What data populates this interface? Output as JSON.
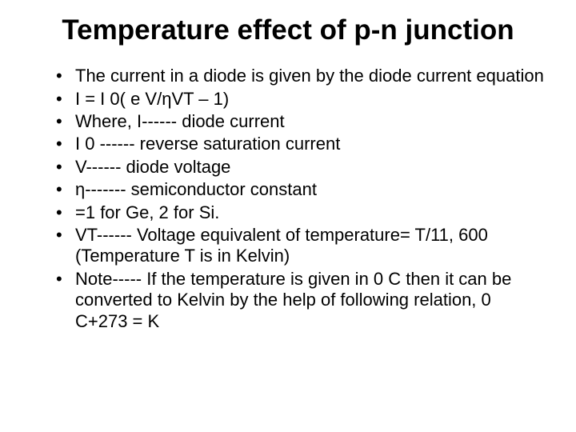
{
  "title": "Temperature effect of p-n junction",
  "bullets": [
    "The current in a diode is given by the diode current equation",
    "I = I 0( e V/ηVT – 1)",
    "Where, I------ diode current",
    "               I 0 ------ reverse saturation current",
    "               V------ diode voltage",
    "               η------- semiconductor constant",
    "                          =1  for Ge, 2 for Si.",
    "          VT------ Voltage equivalent of temperature= T/11, 600 (Temperature T is in Kelvin)",
    "Note----- If the temperature is given in 0 C then it can be converted to Kelvin by the help of following relation, 0 C+273 = K"
  ]
}
